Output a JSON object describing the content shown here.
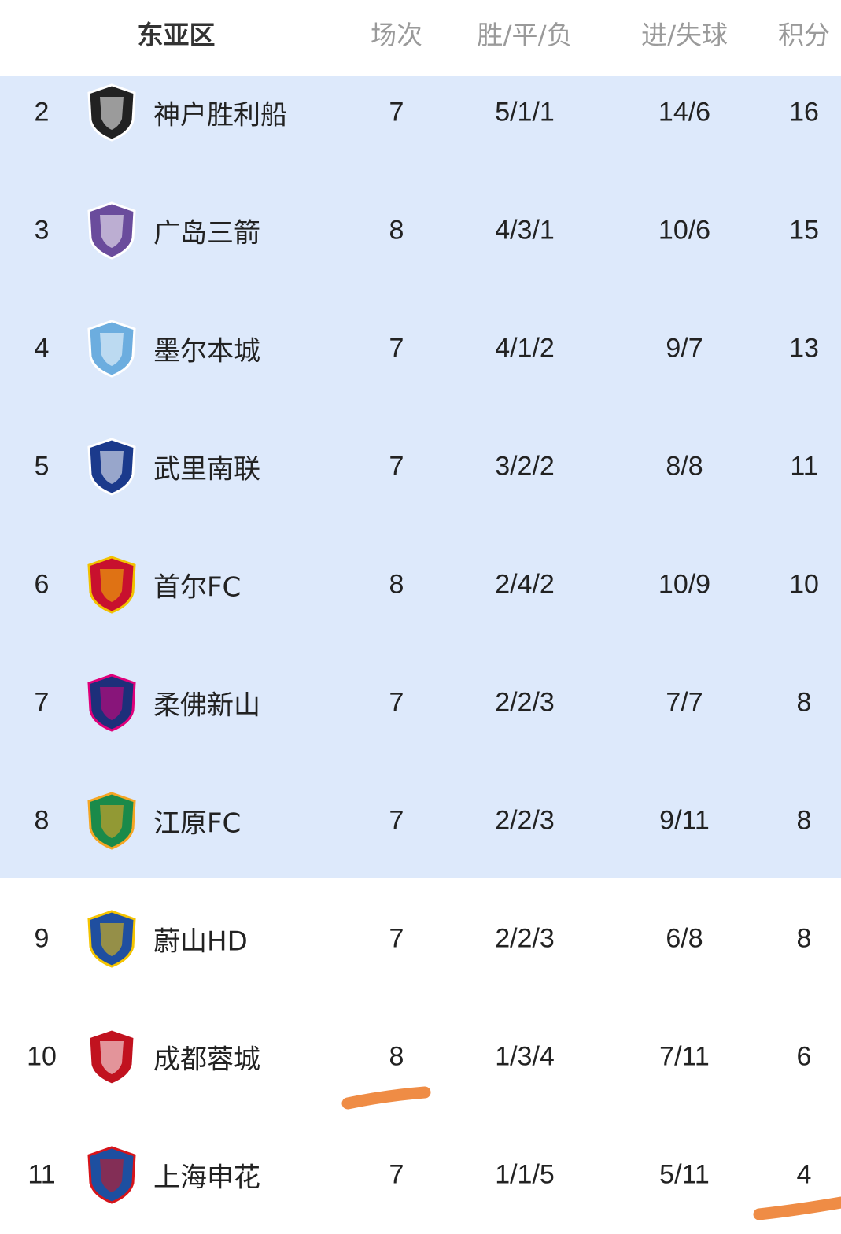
{
  "header": {
    "title": "东亚区",
    "col_played": "场次",
    "col_wdl": "胜/平/负",
    "col_goals": "进/失球",
    "col_points": "积分"
  },
  "colors": {
    "highlight_band": "#dde9fb",
    "annotation": "#ef8c45",
    "header_text": "#9a9a9a"
  },
  "rows": [
    {
      "rank": "2",
      "team": "神户胜利船",
      "played": "7",
      "wdl": "5/1/1",
      "goals": "14/6",
      "points": "16",
      "logo": "vissel-kobe-crest",
      "logo_colors": [
        "#222222",
        "#ffffff"
      ],
      "highlighted": true
    },
    {
      "rank": "3",
      "team": "广岛三箭",
      "played": "8",
      "wdl": "4/3/1",
      "goals": "10/6",
      "points": "15",
      "logo": "sanfrecce-hiroshima-crest",
      "logo_colors": [
        "#6a4c9c",
        "#ffffff"
      ],
      "highlighted": true
    },
    {
      "rank": "4",
      "team": "墨尔本城",
      "played": "7",
      "wdl": "4/1/2",
      "goals": "9/7",
      "points": "13",
      "logo": "melbourne-city-crest",
      "logo_colors": [
        "#6caddf",
        "#ffffff"
      ],
      "highlighted": true
    },
    {
      "rank": "5",
      "team": "武里南联",
      "played": "7",
      "wdl": "3/2/2",
      "goals": "8/8",
      "points": "11",
      "logo": "buriram-united-crest",
      "logo_colors": [
        "#1b3a8c",
        "#ffffff"
      ],
      "highlighted": true
    },
    {
      "rank": "6",
      "team": "首尔FC",
      "played": "8",
      "wdl": "2/4/2",
      "goals": "10/9",
      "points": "10",
      "logo": "fc-seoul-crest",
      "logo_colors": [
        "#c8102e",
        "#f2c200"
      ],
      "highlighted": true
    },
    {
      "rank": "7",
      "team": "柔佛新山",
      "played": "7",
      "wdl": "2/2/3",
      "goals": "7/7",
      "points": "8",
      "logo": "johor-darul-tazim-crest",
      "logo_colors": [
        "#1d2f7a",
        "#e0007a"
      ],
      "highlighted": true
    },
    {
      "rank": "8",
      "team": "江原FC",
      "played": "7",
      "wdl": "2/2/3",
      "goals": "9/11",
      "points": "8",
      "logo": "gangwon-fc-crest",
      "logo_colors": [
        "#1a8a4a",
        "#f5a623"
      ],
      "highlighted": true
    },
    {
      "rank": "9",
      "team": "蔚山HD",
      "played": "7",
      "wdl": "2/2/3",
      "goals": "6/8",
      "points": "8",
      "logo": "ulsan-hd-crest",
      "logo_colors": [
        "#1f4fa0",
        "#f5c400"
      ],
      "highlighted": false
    },
    {
      "rank": "10",
      "team": "成都蓉城",
      "played": "8",
      "wdl": "1/3/4",
      "goals": "7/11",
      "points": "6",
      "logo": "chengdu-rongcheng-crest",
      "logo_colors": [
        "#c1121f",
        "#ffffff"
      ],
      "highlighted": false
    },
    {
      "rank": "11",
      "team": "上海申花",
      "played": "7",
      "wdl": "1/1/5",
      "goals": "5/11",
      "points": "4",
      "logo": "shanghai-shenhua-crest",
      "logo_colors": [
        "#1d4fa0",
        "#d7141a"
      ],
      "highlighted": false
    }
  ]
}
